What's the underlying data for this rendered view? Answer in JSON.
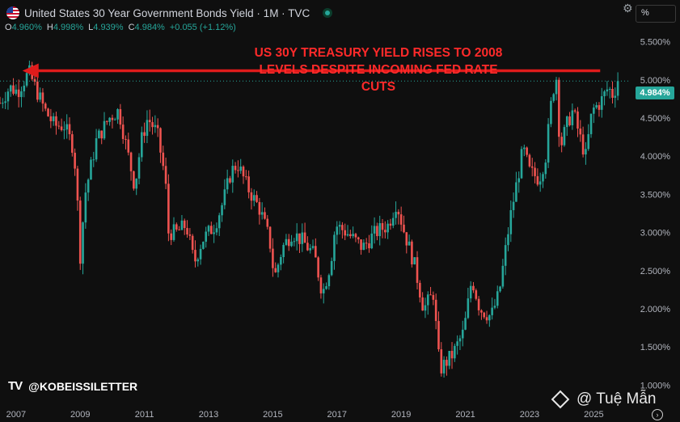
{
  "header": {
    "title": "United States 30 Year Government Bonds Yield · 1M · TVC",
    "ohlc": [
      {
        "key": "O",
        "value": "4.960%"
      },
      {
        "key": "H",
        "value": "4.998%"
      },
      {
        "key": "L",
        "value": "4.939%"
      },
      {
        "key": "C",
        "value": "4.984%"
      },
      {
        "key": "",
        "value": "+0.055 (+1.12%)"
      }
    ],
    "unit_label": "%"
  },
  "annotation": {
    "line1": "US 30Y TREASURY YIELD RISES TO 2008",
    "line2": "LEVELS DESPITE INCOMING FED RATE CUTS"
  },
  "last_price_label": "4.984%",
  "watermark": {
    "logo": "TV",
    "handle": "@KOBEISSILETTER"
  },
  "signature": "@ Tuệ Mẫn",
  "colors": {
    "up": "#26a69a",
    "down": "#ef5350",
    "annotation": "#ff2a2a",
    "background": "#0f0f0f",
    "axis_text": "#b2b5be"
  },
  "chart_data": {
    "type": "line",
    "candlestick": true,
    "frequency": "monthly",
    "yaxis": {
      "min": 0.75,
      "max": 5.75,
      "ticks": [
        5.5,
        5.0,
        4.5,
        4.0,
        3.5,
        3.0,
        2.5,
        2.0,
        1.5,
        1.0
      ],
      "tick_labels": [
        "5.500%",
        "5.000%",
        "4.500%",
        "4.000%",
        "3.500%",
        "3.000%",
        "2.500%",
        "2.000%",
        "1.500%",
        "1.000%"
      ],
      "position": "right"
    },
    "xaxis": {
      "start": 2006.5,
      "end": 2026.1,
      "ticks": [
        2007,
        2009,
        2011,
        2013,
        2015,
        2017,
        2019,
        2021,
        2023,
        2025
      ],
      "tick_labels": [
        "2007",
        "2009",
        "2011",
        "2013",
        "2015",
        "2017",
        "2019",
        "2021",
        "2023",
        "2025"
      ]
    },
    "grid": false,
    "last_value": 4.984,
    "reference_level": 5.12,
    "reference_span": [
      2007.35,
      2025.2
    ],
    "anchors": [
      [
        2006.5,
        4.7
      ],
      [
        2006.8,
        4.9
      ],
      [
        2007.05,
        4.85
      ],
      [
        2007.4,
        5.1
      ],
      [
        2007.6,
        4.9
      ],
      [
        2007.9,
        4.6
      ],
      [
        2008.2,
        4.4
      ],
      [
        2008.5,
        4.4
      ],
      [
        2008.8,
        4.1
      ],
      [
        2008.9,
        3.5
      ],
      [
        2009.0,
        2.7
      ],
      [
        2009.15,
        3.5
      ],
      [
        2009.5,
        4.2
      ],
      [
        2009.9,
        4.5
      ],
      [
        2010.2,
        4.6
      ],
      [
        2010.45,
        4.1
      ],
      [
        2010.7,
        3.6
      ],
      [
        2010.9,
        4.2
      ],
      [
        2011.1,
        4.5
      ],
      [
        2011.4,
        4.3
      ],
      [
        2011.65,
        3.7
      ],
      [
        2011.75,
        3.0
      ],
      [
        2012.0,
        3.0
      ],
      [
        2012.3,
        3.1
      ],
      [
        2012.55,
        2.6
      ],
      [
        2012.8,
        2.9
      ],
      [
        2013.2,
        3.1
      ],
      [
        2013.45,
        3.4
      ],
      [
        2013.7,
        3.8
      ],
      [
        2013.9,
        3.9
      ],
      [
        2014.2,
        3.6
      ],
      [
        2014.6,
        3.3
      ],
      [
        2014.9,
        2.9
      ],
      [
        2015.05,
        2.4
      ],
      [
        2015.3,
        2.8
      ],
      [
        2015.6,
        3.0
      ],
      [
        2015.9,
        2.9
      ],
      [
        2016.3,
        2.7
      ],
      [
        2016.55,
        2.2
      ],
      [
        2016.8,
        2.6
      ],
      [
        2016.95,
        3.1
      ],
      [
        2017.3,
        3.0
      ],
      [
        2017.8,
        2.8
      ],
      [
        2018.2,
        3.0
      ],
      [
        2018.6,
        3.1
      ],
      [
        2018.85,
        3.4
      ],
      [
        2019.1,
        3.0
      ],
      [
        2019.4,
        2.6
      ],
      [
        2019.7,
        2.0
      ],
      [
        2020.0,
        2.2
      ],
      [
        2020.2,
        1.2
      ],
      [
        2020.6,
        1.4
      ],
      [
        2020.95,
        1.7
      ],
      [
        2021.2,
        2.4
      ],
      [
        2021.45,
        2.0
      ],
      [
        2021.8,
        1.9
      ],
      [
        2022.05,
        2.2
      ],
      [
        2022.4,
        3.2
      ],
      [
        2022.8,
        4.1
      ],
      [
        2023.0,
        3.8
      ],
      [
        2023.3,
        3.7
      ],
      [
        2023.5,
        4.0
      ],
      [
        2023.7,
        4.8
      ],
      [
        2023.83,
        5.05
      ],
      [
        2023.95,
        4.1
      ],
      [
        2024.15,
        4.4
      ],
      [
        2024.35,
        4.6
      ],
      [
        2024.6,
        4.2
      ],
      [
        2024.75,
        4.0
      ],
      [
        2024.95,
        4.6
      ],
      [
        2025.2,
        4.7
      ],
      [
        2025.45,
        4.9
      ],
      [
        2025.6,
        4.8
      ],
      [
        2025.75,
        4.98
      ]
    ]
  }
}
